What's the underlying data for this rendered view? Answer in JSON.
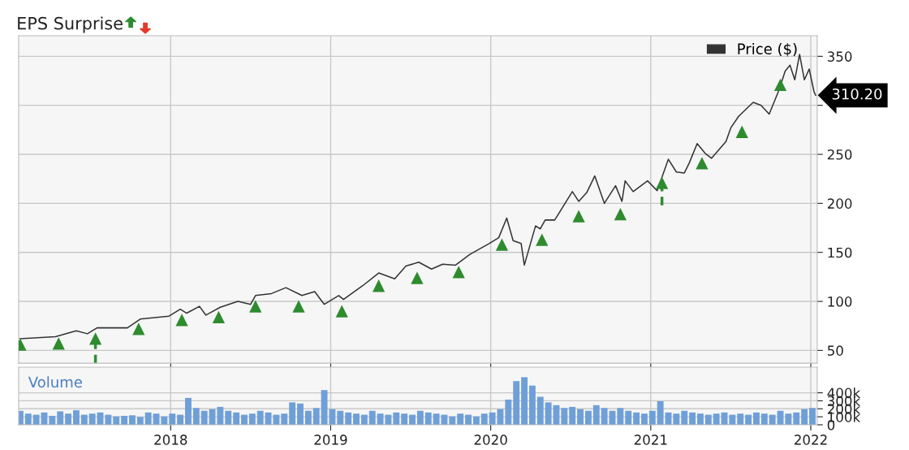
{
  "chart_data": [
    {
      "type": "line",
      "title": "EPS Surprise",
      "legend": "top right",
      "grid": true,
      "tick_labels": "y",
      "xlim": [
        2017.05,
        2022.04
      ],
      "xticks": [
        2018,
        2019,
        2020,
        2021,
        2022
      ],
      "ylim": [
        37,
        371
      ],
      "yticks": [
        50,
        100,
        150,
        200,
        250,
        {
          "value": 300,
          "label": null
        },
        350
      ],
      "annotations": [
        {
          "text": "310.20",
          "x": 2022.03,
          "y": 310.2
        }
      ],
      "series": [
        {
          "name": "Price ($)",
          "type": "line",
          "color": "#333333",
          "x": [
            2017.06,
            2017.28,
            2017.41,
            2017.48,
            2017.54,
            2017.73,
            2017.81,
            2017.99,
            2018.06,
            2018.1,
            2018.18,
            2018.22,
            2018.31,
            2018.42,
            2018.5,
            2018.53,
            2018.63,
            2018.72,
            2018.82,
            2018.9,
            2018.96,
            2019.05,
            2019.08,
            2019.2,
            2019.3,
            2019.4,
            2019.47,
            2019.55,
            2019.63,
            2019.7,
            2019.78,
            2019.87,
            2019.99,
            2020.05,
            2020.1,
            2020.14,
            2020.19,
            2020.21,
            2020.28,
            2020.31,
            2020.34,
            2020.4,
            2020.51,
            2020.55,
            2020.6,
            2020.65,
            2020.71,
            2020.78,
            2020.82,
            2020.84,
            2020.89,
            2020.98,
            2021.04,
            2021.11,
            2021.16,
            2021.21,
            2021.24,
            2021.29,
            2021.34,
            2021.38,
            2021.47,
            2021.5,
            2021.55,
            2021.64,
            2021.69,
            2021.74,
            2021.8,
            2021.84,
            2021.87,
            2021.9,
            2021.93,
            2021.96,
            2021.99,
            2022.02,
            2022.03
          ],
          "values": [
            62,
            64,
            70,
            67,
            73,
            73,
            82,
            85,
            92,
            88,
            95,
            86,
            94,
            100,
            97,
            106,
            108,
            114,
            106,
            110,
            97,
            106,
            102,
            116,
            129,
            123,
            136,
            140,
            133,
            138,
            137,
            148,
            159,
            165,
            185,
            162,
            159,
            137,
            177,
            174,
            183,
            183,
            212,
            202,
            211,
            228,
            200,
            218,
            202,
            223,
            212,
            223,
            213,
            245,
            232,
            231,
            241,
            261,
            251,
            246,
            263,
            277,
            289,
            303,
            300,
            291,
            315,
            335,
            341,
            326,
            352,
            326,
            337,
            314,
            310.2
          ]
        },
        {
          "type": "scatter",
          "color": "#2e8b2e",
          "marker": "triangle",
          "x": [
            2017.06,
            2017.3,
            2017.53,
            2017.8,
            2018.07,
            2018.3,
            2018.53,
            2018.8,
            2019.07,
            2019.3,
            2019.54,
            2019.8,
            2020.07,
            2020.32,
            2020.55,
            2020.81,
            2021.07,
            2021.32,
            2021.57,
            2021.81
          ],
          "values": [
            56,
            57,
            62,
            72,
            81,
            84,
            95,
            95,
            90,
            116,
            124,
            130,
            158,
            163,
            187,
            189,
            221,
            241,
            273,
            321
          ],
          "errors": [
            null,
            null,
            [
              37,
              62
            ],
            null,
            null,
            null,
            null,
            null,
            null,
            null,
            null,
            null,
            null,
            null,
            null,
            null,
            [
              198,
              221
            ],
            null,
            null,
            null
          ]
        }
      ]
    },
    {
      "type": "bar",
      "color": "#6f9fd8",
      "grid": true,
      "annotations": [
        "Volume"
      ],
      "xlim": [
        2017.05,
        2022.04
      ],
      "xticks": [
        2018,
        2019,
        2020,
        2021,
        2022
      ],
      "ylim": [
        0,
        720000
      ],
      "yticks": [
        0,
        {
          "value": 100000,
          "label": "100k"
        },
        {
          "value": 200000,
          "label": "200k"
        },
        {
          "value": 300000,
          "label": "300k"
        },
        {
          "value": 400000,
          "label": "400k"
        }
      ],
      "x": [
        2017.06,
        2017.11,
        2017.16,
        2017.21,
        2017.26,
        2017.31,
        2017.36,
        2017.41,
        2017.46,
        2017.51,
        2017.56,
        2017.61,
        2017.66,
        2017.71,
        2017.76,
        2017.81,
        2017.86,
        2017.91,
        2017.96,
        2018.01,
        2018.06,
        2018.11,
        2018.16,
        2018.21,
        2018.26,
        2018.31,
        2018.36,
        2018.41,
        2018.46,
        2018.51,
        2018.56,
        2018.61,
        2018.66,
        2018.71,
        2018.76,
        2018.81,
        2018.86,
        2018.91,
        2018.96,
        2019.01,
        2019.06,
        2019.11,
        2019.16,
        2019.21,
        2019.26,
        2019.31,
        2019.36,
        2019.41,
        2019.46,
        2019.51,
        2019.56,
        2019.61,
        2019.66,
        2019.71,
        2019.76,
        2019.81,
        2019.86,
        2019.91,
        2019.96,
        2020.01,
        2020.06,
        2020.11,
        2020.16,
        2020.21,
        2020.26,
        2020.31,
        2020.36,
        2020.41,
        2020.46,
        2020.51,
        2020.56,
        2020.61,
        2020.66,
        2020.71,
        2020.76,
        2020.81,
        2020.86,
        2020.91,
        2020.96,
        2021.01,
        2021.06,
        2021.11,
        2021.16,
        2021.21,
        2021.26,
        2021.31,
        2021.36,
        2021.41,
        2021.46,
        2021.51,
        2021.56,
        2021.61,
        2021.66,
        2021.71,
        2021.76,
        2021.81,
        2021.86,
        2021.91,
        2021.96,
        2022.01
      ],
      "values": [
        175000,
        140000,
        126000,
        154000,
        112000,
        168000,
        140000,
        182000,
        126000,
        140000,
        154000,
        126000,
        105000,
        112000,
        119000,
        98000,
        154000,
        140000,
        105000,
        140000,
        126000,
        336000,
        210000,
        175000,
        196000,
        224000,
        175000,
        154000,
        126000,
        140000,
        175000,
        154000,
        126000,
        140000,
        280000,
        266000,
        175000,
        210000,
        434000,
        196000,
        175000,
        154000,
        140000,
        126000,
        175000,
        140000,
        126000,
        154000,
        140000,
        126000,
        175000,
        154000,
        140000,
        126000,
        105000,
        140000,
        126000,
        105000,
        140000,
        154000,
        196000,
        315000,
        546000,
        595000,
        490000,
        350000,
        280000,
        245000,
        210000,
        224000,
        196000,
        175000,
        245000,
        210000,
        175000,
        210000,
        175000,
        154000,
        140000,
        175000,
        294000,
        154000,
        140000,
        175000,
        154000,
        140000,
        126000,
        140000,
        154000,
        126000,
        140000,
        126000,
        154000,
        140000,
        126000,
        175000,
        140000,
        154000,
        196000,
        210000
      ]
    }
  ]
}
